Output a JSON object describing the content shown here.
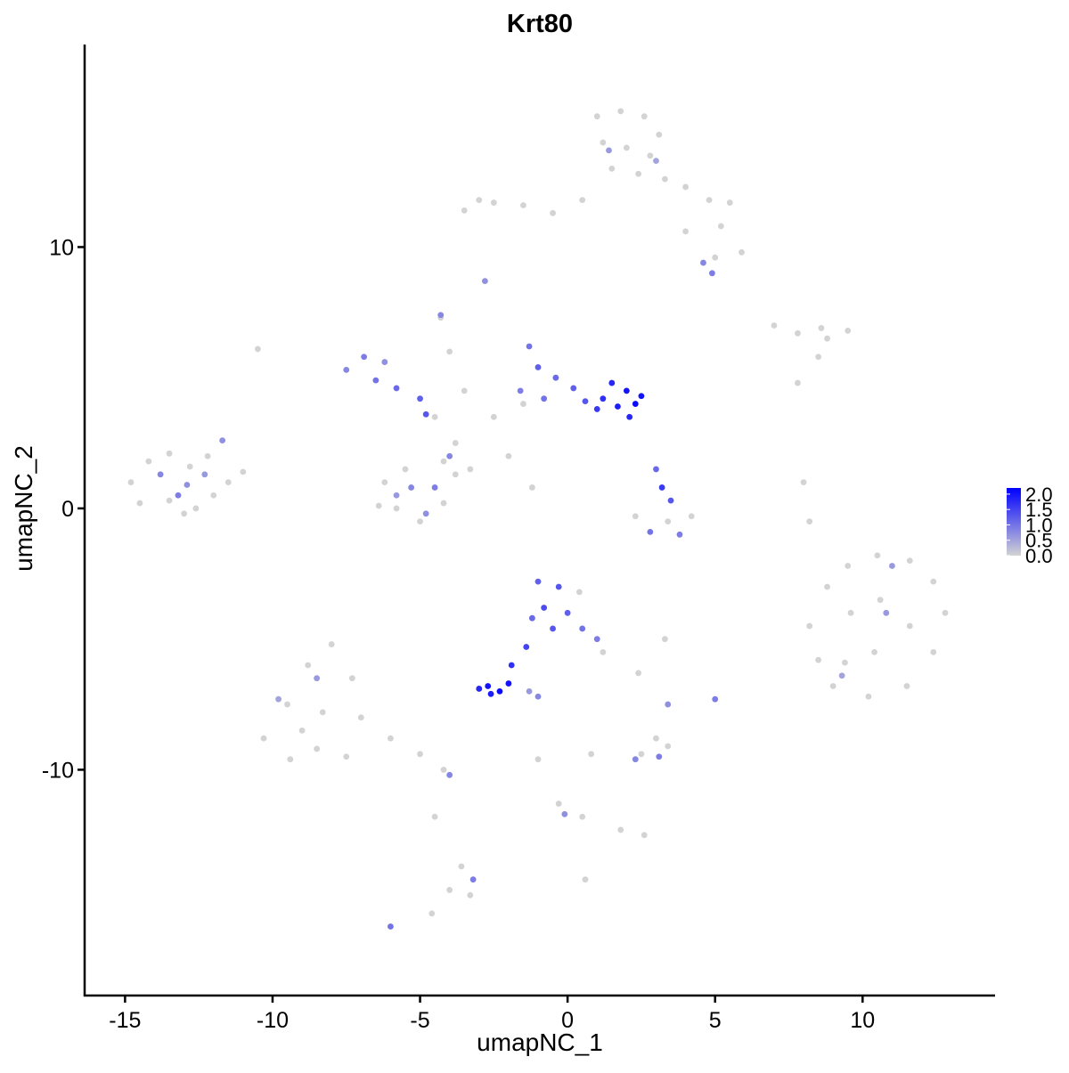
{
  "chart_data": {
    "type": "scatter",
    "title": "Krt80",
    "x_label": "umapNC_1",
    "y_label": "umapNC_2",
    "xlim": [
      -16.37,
      14.49
    ],
    "ylim": [
      -18.64,
      17.75
    ],
    "xticks": [
      -15,
      -10,
      -5,
      0,
      5,
      10
    ],
    "yticks": [
      -10,
      0,
      10
    ],
    "color_low": "#d3d3d3",
    "color_high": "#0000ff",
    "colorbar": {
      "lim": [
        0,
        2.2
      ],
      "ticks": [
        {
          "value": 0,
          "label": "0.0"
        },
        {
          "value": 0.5,
          "label": "0.5"
        },
        {
          "value": 1,
          "label": "1.0"
        },
        {
          "value": 1.5,
          "label": "1.5"
        },
        {
          "value": 2,
          "label": "2.0"
        }
      ]
    },
    "x": [
      1.0,
      1.8,
      2.6,
      3.1,
      1.2,
      2.0,
      2.8,
      1.5,
      2.4,
      3.3,
      4.0,
      4.8,
      5.5,
      5.2,
      5.9,
      5.0,
      0.5,
      -0.5,
      -1.5,
      -2.5,
      -3.0,
      -3.5,
      4.0,
      4.6,
      4.9,
      1.4,
      3.0,
      -2.8,
      7.0,
      7.8,
      8.6,
      9.5,
      8.8,
      8.5,
      7.8,
      -14.8,
      -14.2,
      -13.5,
      -12.8,
      -13.5,
      -12.6,
      -12.0,
      -11.5,
      -11.0,
      -12.2,
      -14.5,
      -13.0,
      -13.8,
      -12.9,
      -12.3,
      -13.2,
      -11.7,
      -10.5,
      -4.5,
      -3.8,
      -3.3,
      -4.2,
      -3.5,
      -2.5,
      -4.0,
      -4.3,
      -1.5,
      -2.0,
      -1.2,
      -6.9,
      -7.5,
      -6.5,
      -5.8,
      -5.0,
      -4.8,
      -6.2,
      -1.3,
      -1.0,
      -0.4,
      0.2,
      -0.8,
      0.6,
      -1.6,
      -4.3,
      1.5,
      2.0,
      2.3,
      1.7,
      2.5,
      1.2,
      2.1,
      1.0,
      -6.2,
      -5.8,
      -5.0,
      -4.2,
      -3.8,
      -5.5,
      -6.4,
      -5.3,
      -4.5,
      -4.8,
      -5.8,
      -4.0,
      2.3,
      3.4,
      4.2,
      3.2,
      3.5,
      2.8,
      3.8,
      3.0,
      -1.0,
      -0.3,
      -0.8,
      0.0,
      -1.2,
      0.5,
      1.0,
      -0.5,
      -1.4,
      -1.9,
      0.4,
      1.2,
      -2.7,
      -2.3,
      -2.0,
      -2.6,
      -3.0,
      -1.0,
      8.2,
      8.8,
      9.5,
      10.5,
      11.6,
      12.4,
      12.8,
      12.4,
      11.5,
      10.2,
      9.0,
      8.5,
      9.6,
      10.6,
      11.6,
      10.4,
      9.4,
      10.8,
      9.3,
      11.0,
      -10.3,
      -9.5,
      -8.8,
      -8.0,
      -7.3,
      -7.0,
      -8.5,
      -9.4,
      -7.5,
      -6.0,
      -5.0,
      -4.2,
      -8.3,
      -9.0,
      -4.5,
      -8.5,
      -9.8,
      -4.0,
      -3.6,
      -3.3,
      -4.0,
      -4.6,
      0.8,
      -1.0,
      -0.3,
      0.5,
      1.8,
      2.6,
      2.5,
      3.0,
      3.4,
      0.6,
      2.4,
      3.3,
      2.3,
      3.1,
      -0.1,
      -3.2,
      -6.0,
      5.0,
      3.4,
      -1.3,
      8.0,
      8.2
    ],
    "y": [
      15.0,
      15.2,
      15.0,
      14.3,
      14.0,
      13.8,
      13.5,
      13.0,
      12.8,
      12.6,
      12.3,
      11.8,
      11.7,
      10.8,
      9.8,
      9.6,
      11.8,
      11.3,
      11.6,
      11.7,
      11.8,
      11.4,
      10.6,
      9.4,
      9.0,
      13.7,
      13.3,
      8.7,
      7.0,
      6.7,
      6.9,
      6.8,
      6.5,
      5.8,
      4.8,
      1.0,
      1.8,
      2.1,
      1.6,
      0.3,
      0.0,
      0.5,
      1.0,
      1.4,
      2.0,
      0.2,
      -0.2,
      1.3,
      0.9,
      1.3,
      0.5,
      2.6,
      6.1,
      3.5,
      2.5,
      1.5,
      1.8,
      4.5,
      3.5,
      6.0,
      7.3,
      4.0,
      2.0,
      0.8,
      5.8,
      5.3,
      4.9,
      4.6,
      4.2,
      3.6,
      5.6,
      6.2,
      5.4,
      5.0,
      4.6,
      4.2,
      4.1,
      4.5,
      7.4,
      4.8,
      4.5,
      4.0,
      3.9,
      4.3,
      4.2,
      3.5,
      3.8,
      1.0,
      0.0,
      -0.5,
      0.2,
      1.3,
      1.5,
      0.1,
      0.8,
      0.8,
      -0.2,
      0.5,
      2.0,
      -0.3,
      -0.5,
      -0.3,
      0.8,
      0.3,
      -0.9,
      -1.0,
      1.5,
      -2.8,
      -3.0,
      -3.8,
      -4.0,
      -4.2,
      -4.6,
      -5.0,
      -4.6,
      -5.3,
      -6.0,
      -3.2,
      -5.5,
      -6.8,
      -7.0,
      -6.7,
      -7.1,
      -6.9,
      -7.2,
      -4.5,
      -3.0,
      -2.2,
      -1.8,
      -2.0,
      -2.8,
      -4.0,
      -5.5,
      -6.8,
      -7.2,
      -6.8,
      -5.8,
      -4.0,
      -3.5,
      -4.5,
      -5.5,
      -5.9,
      -4.0,
      -6.4,
      -2.2,
      -8.8,
      -7.5,
      -6.0,
      -5.2,
      -6.5,
      -8.0,
      -9.2,
      -9.6,
      -9.5,
      -8.8,
      -9.4,
      -10.0,
      -7.8,
      -8.5,
      -11.8,
      -6.5,
      -7.3,
      -10.2,
      -13.7,
      -14.8,
      -14.6,
      -15.5,
      -9.4,
      -9.6,
      -11.3,
      -11.8,
      -12.3,
      -12.5,
      -9.4,
      -8.8,
      -9.1,
      -14.2,
      -6.3,
      -5.0,
      -9.6,
      -9.5,
      -11.7,
      -14.2,
      -16.0,
      -7.3,
      -7.5,
      -7.0,
      1.0,
      -0.5
    ],
    "values": [
      0,
      0,
      0,
      0,
      0,
      0,
      0,
      0,
      0,
      0,
      0,
      0,
      0,
      0,
      0,
      0,
      0,
      0,
      0,
      0,
      0,
      0,
      0,
      0.8,
      0.9,
      0.6,
      0.5,
      0.7,
      0,
      0,
      0,
      0,
      0,
      0,
      0,
      0,
      0,
      0,
      0,
      0,
      0,
      0,
      0,
      0,
      0,
      0,
      0,
      0.8,
      0.7,
      0.6,
      0.9,
      0.7,
      0,
      0,
      0,
      0,
      0,
      0,
      0,
      0,
      0,
      0,
      0,
      0,
      0.9,
      0.8,
      1.0,
      1.1,
      1.2,
      1.3,
      0.7,
      1.0,
      1.2,
      1.1,
      1.2,
      1.0,
      1.3,
      0.9,
      0.8,
      1.8,
      2.0,
      2.1,
      1.9,
      2.0,
      1.7,
      1.8,
      1.6,
      0,
      0,
      0,
      0,
      0,
      0,
      0,
      0.8,
      0.9,
      0.7,
      0.6,
      0.8,
      0,
      0,
      0,
      1.6,
      1.3,
      1.0,
      0.9,
      1.1,
      1.2,
      1.3,
      1.4,
      1.2,
      1.1,
      1.0,
      0.9,
      1.3,
      1.5,
      1.7,
      0,
      0,
      2.0,
      2.1,
      2.0,
      1.9,
      1.8,
      0.8,
      0,
      0,
      0,
      0,
      0,
      0,
      0,
      0,
      0,
      0,
      0,
      0,
      0,
      0,
      0,
      0,
      0,
      0.6,
      0.5,
      0.6,
      0,
      0,
      0,
      0,
      0,
      0,
      0,
      0,
      0,
      0,
      0,
      0,
      0,
      0,
      0,
      0.6,
      0.5,
      0.8,
      0,
      0,
      0,
      0,
      0,
      0,
      0,
      0,
      0,
      0,
      0,
      0,
      0,
      0,
      0,
      0,
      0.8,
      0.9,
      0.7,
      0.9,
      1.0,
      0.9,
      0.7,
      0.6,
      0,
      0
    ]
  }
}
